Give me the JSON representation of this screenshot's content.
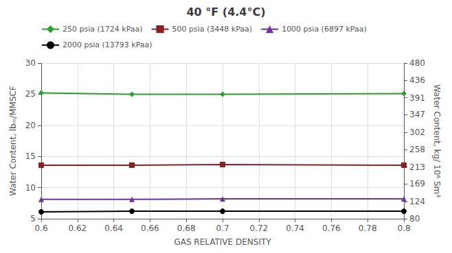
{
  "chart_data": {
    "type": "line",
    "title": "40 °F (4.4°C)",
    "xlabel": "GAS RELATIVE DENSITY",
    "ylabel": "Water Content, lbₘ/MMSCF",
    "y2label": "Water Content, kg/ 10⁶ Sm³",
    "x": [
      0.6,
      0.65,
      0.7,
      0.8
    ],
    "series": [
      {
        "name": "250 psia (1724 kPaa)",
        "color": "#2ca02c",
        "marker": "diamond",
        "values": [
          25.2,
          25.0,
          25.0,
          25.1
        ]
      },
      {
        "name": "500 psia (3448 kPaa)",
        "color": "#8b2020",
        "marker": "square",
        "values": [
          13.6,
          13.6,
          13.7,
          13.6
        ]
      },
      {
        "name": "1000 psia (6897 kPaa)",
        "color": "#7030a0",
        "marker": "triangle",
        "values": [
          8.1,
          8.1,
          8.2,
          8.2
        ]
      },
      {
        "name": "2000 psia (13793 kPaa)",
        "color": "#000000",
        "marker": "circle",
        "values": [
          6.1,
          6.2,
          6.2,
          6.2
        ]
      }
    ],
    "xlim": [
      0.6,
      0.8
    ],
    "xticks": [
      0.6,
      0.62,
      0.64,
      0.66,
      0.68,
      0.7,
      0.72,
      0.74,
      0.76,
      0.78,
      0.8
    ],
    "ylim": [
      5,
      30
    ],
    "yticks": [
      5,
      10,
      15,
      20,
      25,
      30
    ],
    "y2lim": [
      80,
      480
    ],
    "y2ticks": [
      80,
      124,
      169,
      213,
      258,
      302,
      347,
      391,
      436,
      480
    ],
    "grid": true,
    "legend": "upper left"
  }
}
